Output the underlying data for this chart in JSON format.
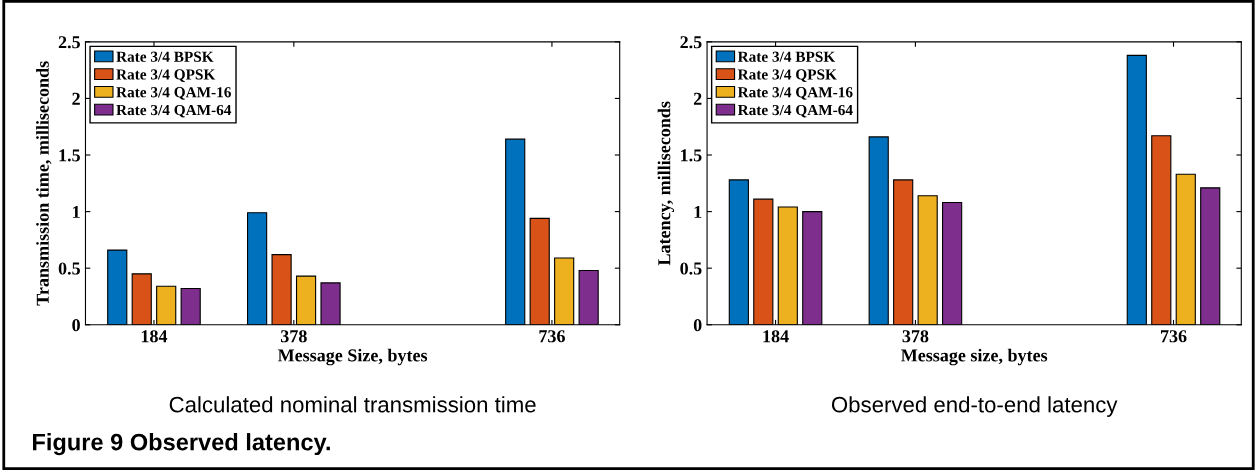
{
  "chart_data": [
    {
      "type": "bar",
      "xlabel": "Message Size, bytes",
      "ylabel": "Transmission time, milliseconds",
      "x": [
        184,
        378,
        736
      ],
      "xlim": [
        89,
        830
      ],
      "xticks": [
        184,
        378,
        736
      ],
      "ylim": [
        0,
        2.5
      ],
      "yticks": [
        0,
        0.5,
        1,
        1.5,
        2,
        2.5
      ],
      "legend": "top left",
      "grid": false,
      "series": [
        {
          "name": "Rate 3/4 BPSK",
          "color": "#0072bd",
          "values": [
            0.66,
            0.99,
            1.64
          ]
        },
        {
          "name": "Rate 3/4 QPSK",
          "color": "#d95319",
          "values": [
            0.45,
            0.62,
            0.94
          ]
        },
        {
          "name": "Rate 3/4 QAM-16",
          "color": "#edb120",
          "values": [
            0.34,
            0.43,
            0.59
          ]
        },
        {
          "name": "Rate 3/4 QAM-64",
          "color": "#7e2f8e",
          "values": [
            0.32,
            0.37,
            0.48
          ]
        }
      ],
      "annotations": [
        "Calculated nominal transmission time"
      ]
    },
    {
      "type": "bar",
      "xlabel": "Message size, bytes",
      "ylabel": "Latency, milliseconds",
      "x": [
        184,
        378,
        736
      ],
      "xlim": [
        89,
        830
      ],
      "xticks": [
        184,
        378,
        736
      ],
      "ylim": [
        0,
        2.5
      ],
      "yticks": [
        0,
        0.5,
        1,
        1.5,
        2,
        2.5
      ],
      "legend": "top left",
      "grid": false,
      "series": [
        {
          "name": "Rate 3/4 BPSK",
          "color": "#0072bd",
          "values": [
            1.28,
            1.66,
            2.38
          ]
        },
        {
          "name": "Rate 3/4 QPSK",
          "color": "#d95319",
          "values": [
            1.11,
            1.28,
            1.67
          ]
        },
        {
          "name": "Rate 3/4 QAM-16",
          "color": "#edb120",
          "values": [
            1.04,
            1.14,
            1.33
          ]
        },
        {
          "name": "Rate 3/4 QAM-64",
          "color": "#7e2f8e",
          "values": [
            1.0,
            1.08,
            1.21
          ]
        }
      ],
      "annotations": [
        "Observed end-to-end latency",
        "Figure 9 Observed latency."
      ]
    }
  ]
}
